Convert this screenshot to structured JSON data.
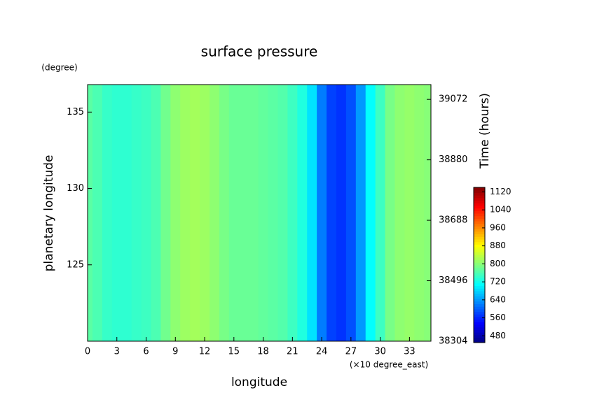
{
  "chart_data": {
    "type": "heatmap",
    "title": "surface pressure",
    "x_label": "longitude",
    "x_unit": "(×10 degree_east)",
    "y_label": "planetary longitude",
    "y_unit": "(degree)",
    "y2_label": "Time (hours)",
    "x": [
      0,
      1,
      2,
      3,
      4,
      5,
      6,
      7,
      8,
      9,
      10,
      11,
      12,
      13,
      14,
      15,
      16,
      17,
      18,
      19,
      20,
      21,
      22,
      23,
      24,
      25,
      26,
      27,
      28,
      29,
      30,
      31,
      32,
      33,
      34,
      35
    ],
    "values": [
      770,
      760,
      745,
      740,
      740,
      745,
      750,
      760,
      785,
      805,
      815,
      820,
      815,
      805,
      790,
      780,
      780,
      780,
      775,
      770,
      765,
      750,
      730,
      690,
      620,
      580,
      570,
      590,
      640,
      710,
      750,
      790,
      805,
      810,
      805,
      800
    ],
    "xlim": [
      0,
      35.2
    ],
    "xticks": [
      0,
      3,
      6,
      9,
      12,
      15,
      18,
      21,
      24,
      27,
      30,
      33
    ],
    "ylim": [
      120,
      136.8
    ],
    "yticks": [
      125,
      130,
      135
    ],
    "y2lim": [
      38304,
      39119
    ],
    "y2ticks": [
      38304,
      38496,
      38688,
      38880,
      39072
    ],
    "clim": [
      450,
      1140
    ],
    "cticks": [
      480,
      560,
      640,
      720,
      800,
      880,
      960,
      1040,
      1120
    ],
    "colormap": "jet"
  }
}
